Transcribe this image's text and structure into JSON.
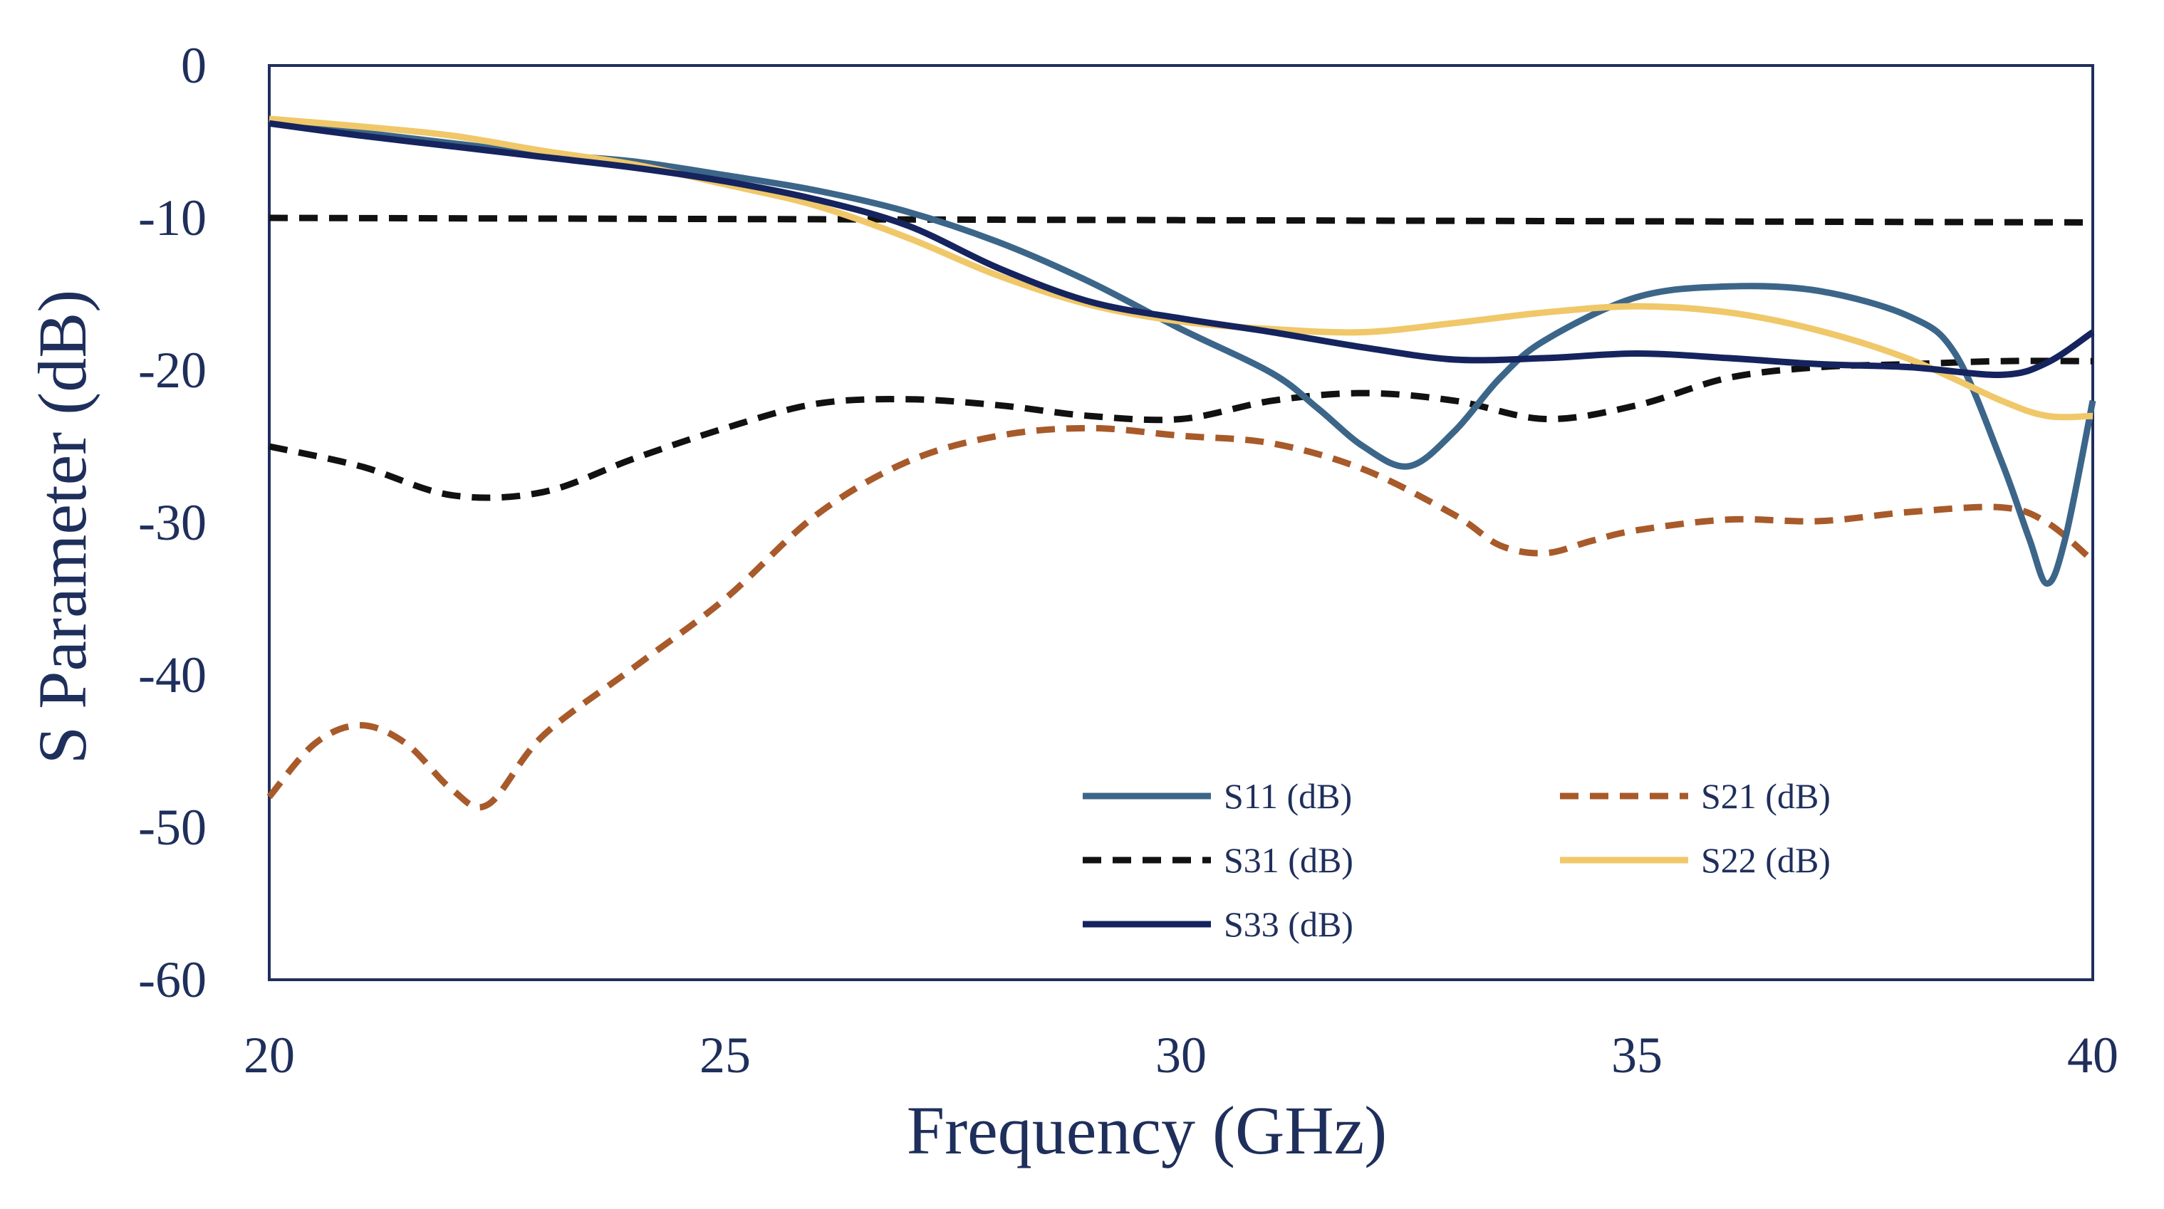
{
  "chart_data": {
    "type": "line",
    "title": "",
    "xlabel": "Frequency (GHz)",
    "ylabel": "S Parameter (dB)",
    "xlim": [
      20,
      40
    ],
    "ylim": [
      -60,
      0
    ],
    "xticks": [
      20,
      25,
      30,
      35,
      40
    ],
    "xtick_labels": [
      "20",
      "25",
      "30",
      "35",
      "40"
    ],
    "yticks": [
      0,
      -10,
      -20,
      -30,
      -40,
      -50,
      -60
    ],
    "ytick_labels": [
      "0",
      "-10",
      "-20",
      "-30",
      "-40",
      "-50",
      "-60"
    ],
    "grid": false,
    "legend_position": "bottom-right",
    "series": [
      {
        "name": "S11 (dB)",
        "color": "#3c6689",
        "dash": "solid",
        "x": [
          20,
          21,
          22,
          23,
          24,
          25,
          26,
          27,
          28,
          29,
          30,
          31,
          31.5,
          32,
          32.5,
          33,
          33.5,
          34,
          35,
          36,
          37,
          38,
          38.5,
          39,
          39.3,
          39.5,
          39.7,
          40
        ],
        "y": [
          -3.8,
          -4.4,
          -5.1,
          -5.8,
          -6.3,
          -7.2,
          -8.2,
          -9.6,
          -11.6,
          -14.2,
          -17.3,
          -20.2,
          -22.5,
          -25,
          -26.3,
          -24,
          -20.5,
          -18,
          -15.2,
          -14.5,
          -14.8,
          -16.5,
          -19,
          -26,
          -31,
          -34,
          -31,
          -22
        ]
      },
      {
        "name": "S21 (dB)",
        "color": "#a85a2a",
        "dash": "dashed",
        "x": [
          20,
          20.5,
          21,
          21.5,
          22,
          22.4,
          23,
          24,
          25,
          26,
          27,
          28,
          29,
          30,
          31,
          32,
          33,
          33.5,
          34,
          34.5,
          35,
          36,
          37,
          38,
          39,
          39.5,
          40
        ],
        "y": [
          -48,
          -44.5,
          -43.3,
          -44.5,
          -47.5,
          -48.5,
          -44,
          -39.5,
          -35,
          -29.5,
          -26,
          -24.3,
          -23.8,
          -24.3,
          -24.8,
          -26.5,
          -29.5,
          -31.5,
          -32,
          -31.2,
          -30.5,
          -29.8,
          -29.9,
          -29.3,
          -29,
          -30,
          -32.5
        ]
      },
      {
        "name": "S31 (dB)",
        "color": "#111111",
        "dash": "dashed",
        "x": [
          20,
          20,
          21,
          22,
          23,
          24,
          25,
          26,
          27,
          28,
          29,
          30,
          31,
          32,
          33,
          34,
          35,
          36,
          37,
          38,
          39,
          40
        ],
        "y": [
          -10,
          -25,
          -26.3,
          -28.2,
          -28,
          -25.8,
          -23.8,
          -22.2,
          -21.9,
          -22.3,
          -23,
          -23.2,
          -22,
          -21.5,
          -22,
          -23.2,
          -22.3,
          -20.5,
          -19.8,
          -19.6,
          -19.4,
          -19.4
        ]
      },
      {
        "name": "S22 (dB)",
        "color": "#f0c86a",
        "dash": "solid",
        "x": [
          20,
          21,
          22,
          23,
          24,
          25,
          26,
          27,
          28,
          29,
          30,
          31,
          32,
          33,
          34,
          35,
          36,
          37,
          38,
          39,
          39.5,
          40
        ],
        "y": [
          -3.5,
          -4,
          -4.6,
          -5.6,
          -6.5,
          -7.8,
          -9.2,
          -11.3,
          -13.8,
          -15.7,
          -16.8,
          -17.3,
          -17.5,
          -16.9,
          -16.2,
          -15.8,
          -16.2,
          -17.4,
          -19.3,
          -22,
          -23,
          -23
        ]
      },
      {
        "name": "S33 (dB)",
        "color": "#15245e",
        "dash": "solid",
        "x": [
          20,
          21,
          22,
          23,
          24,
          25,
          26,
          27,
          28,
          29,
          30,
          31,
          32,
          33,
          34,
          35,
          36,
          37,
          38,
          39,
          39.5,
          40
        ],
        "y": [
          -3.8,
          -4.6,
          -5.3,
          -6,
          -6.7,
          -7.6,
          -8.8,
          -10.5,
          -13.3,
          -15.5,
          -16.6,
          -17.5,
          -18.5,
          -19.3,
          -19.2,
          -18.9,
          -19.2,
          -19.6,
          -19.8,
          -20.3,
          -19.5,
          -17.5
        ]
      }
    ],
    "s31_note": "S31 is drawn as a flat dashed line near -10 dB across the band, plus a lower dashed trace starting near -25 dB"
  }
}
